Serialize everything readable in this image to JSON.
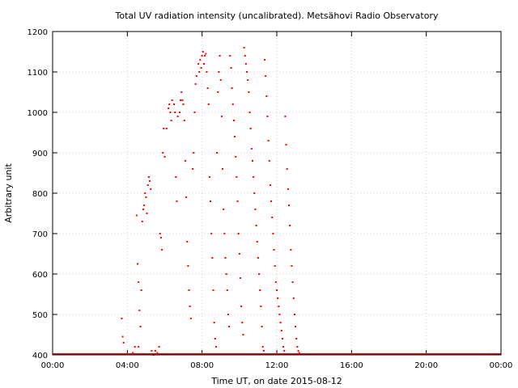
{
  "chart_data": {
    "type": "scatter",
    "title": "Total UV radiation intensity (uncalibrated). Metsähovi Radio Observatory",
    "xlabel": "Time UT, on date 2015-08-12",
    "ylabel": "Arbitrary unit",
    "x_unit": "hours UT",
    "xlim": [
      0,
      24
    ],
    "ylim": [
      400,
      1200
    ],
    "xticks": [
      {
        "value": 0,
        "label": "00:00"
      },
      {
        "value": 4,
        "label": "04:00"
      },
      {
        "value": 8,
        "label": "08:00"
      },
      {
        "value": 12,
        "label": "12:00"
      },
      {
        "value": 16,
        "label": "16:00"
      },
      {
        "value": 20,
        "label": "20:00"
      },
      {
        "value": 24,
        "label": "00:00"
      }
    ],
    "yticks": [
      400,
      500,
      600,
      700,
      800,
      900,
      1000,
      1100,
      1200
    ],
    "grid": true,
    "point_color": "#ff0000",
    "series": [
      {
        "points": [
          [
            3.7,
            490
          ],
          [
            3.75,
            445
          ],
          [
            3.8,
            430
          ],
          [
            4.3,
            405
          ],
          [
            4.4,
            420
          ],
          [
            4.5,
            745
          ],
          [
            4.55,
            625
          ],
          [
            4.6,
            580
          ],
          [
            4.6,
            420
          ],
          [
            4.65,
            510
          ],
          [
            4.7,
            470
          ],
          [
            4.75,
            560
          ],
          [
            4.8,
            730
          ],
          [
            4.85,
            760
          ],
          [
            4.9,
            770
          ],
          [
            4.95,
            800
          ],
          [
            5.0,
            790
          ],
          [
            5.05,
            750
          ],
          [
            5.1,
            820
          ],
          [
            5.15,
            840
          ],
          [
            5.2,
            830
          ],
          [
            5.25,
            810
          ],
          [
            5.3,
            410
          ],
          [
            5.4,
            400
          ],
          [
            5.5,
            410
          ],
          [
            5.6,
            405
          ],
          [
            5.7,
            420
          ],
          [
            5.75,
            700
          ],
          [
            5.8,
            690
          ],
          [
            5.85,
            660
          ],
          [
            5.9,
            900
          ],
          [
            5.95,
            960
          ],
          [
            6.0,
            890
          ],
          [
            6.1,
            960
          ],
          [
            6.2,
            1010
          ],
          [
            6.25,
            1020
          ],
          [
            6.3,
            1000
          ],
          [
            6.35,
            980
          ],
          [
            6.4,
            1030
          ],
          [
            6.5,
            1020
          ],
          [
            6.55,
            1000
          ],
          [
            6.6,
            840
          ],
          [
            6.65,
            780
          ],
          [
            6.7,
            990
          ],
          [
            6.8,
            1000
          ],
          [
            6.85,
            1030
          ],
          [
            6.9,
            1050
          ],
          [
            6.95,
            1030
          ],
          [
            7.0,
            1020
          ],
          [
            7.05,
            980
          ],
          [
            7.1,
            880
          ],
          [
            7.15,
            790
          ],
          [
            7.2,
            680
          ],
          [
            7.25,
            620
          ],
          [
            7.3,
            560
          ],
          [
            7.35,
            520
          ],
          [
            7.4,
            490
          ],
          [
            7.5,
            860
          ],
          [
            7.55,
            900
          ],
          [
            7.6,
            1000
          ],
          [
            7.65,
            1070
          ],
          [
            7.7,
            1090
          ],
          [
            7.8,
            1120
          ],
          [
            7.85,
            1100
          ],
          [
            7.9,
            1130
          ],
          [
            7.95,
            1110
          ],
          [
            8.0,
            1140
          ],
          [
            8.05,
            1150
          ],
          [
            8.1,
            1120
          ],
          [
            8.15,
            1140
          ],
          [
            8.2,
            1145
          ],
          [
            8.25,
            1100
          ],
          [
            8.3,
            1060
          ],
          [
            8.35,
            1020
          ],
          [
            8.4,
            840
          ],
          [
            8.45,
            780
          ],
          [
            8.5,
            700
          ],
          [
            8.55,
            640
          ],
          [
            8.6,
            560
          ],
          [
            8.65,
            480
          ],
          [
            8.7,
            440
          ],
          [
            8.75,
            420
          ],
          [
            8.8,
            900
          ],
          [
            8.85,
            1050
          ],
          [
            8.9,
            1100
          ],
          [
            8.95,
            1140
          ],
          [
            9.0,
            1080
          ],
          [
            9.05,
            990
          ],
          [
            9.1,
            860
          ],
          [
            9.15,
            760
          ],
          [
            9.2,
            700
          ],
          [
            9.25,
            640
          ],
          [
            9.3,
            600
          ],
          [
            9.35,
            560
          ],
          [
            9.4,
            500
          ],
          [
            9.45,
            470
          ],
          [
            9.5,
            1140
          ],
          [
            9.55,
            1110
          ],
          [
            9.6,
            1060
          ],
          [
            9.65,
            1020
          ],
          [
            9.7,
            980
          ],
          [
            9.75,
            940
          ],
          [
            9.8,
            890
          ],
          [
            9.85,
            840
          ],
          [
            9.9,
            780
          ],
          [
            9.95,
            700
          ],
          [
            10.0,
            650
          ],
          [
            10.05,
            590
          ],
          [
            10.1,
            520
          ],
          [
            10.15,
            480
          ],
          [
            10.2,
            450
          ],
          [
            10.25,
            1160
          ],
          [
            10.3,
            1140
          ],
          [
            10.35,
            1120
          ],
          [
            10.4,
            1100
          ],
          [
            10.45,
            1080
          ],
          [
            10.5,
            1050
          ],
          [
            10.55,
            1000
          ],
          [
            10.6,
            960
          ],
          [
            10.65,
            910
          ],
          [
            10.7,
            880
          ],
          [
            10.75,
            840
          ],
          [
            10.8,
            800
          ],
          [
            10.85,
            760
          ],
          [
            10.9,
            720
          ],
          [
            10.95,
            680
          ],
          [
            11.0,
            640
          ],
          [
            11.05,
            600
          ],
          [
            11.1,
            560
          ],
          [
            11.15,
            520
          ],
          [
            11.2,
            470
          ],
          [
            11.25,
            420
          ],
          [
            11.3,
            410
          ],
          [
            11.35,
            1130
          ],
          [
            11.4,
            1090
          ],
          [
            11.45,
            1040
          ],
          [
            11.5,
            990
          ],
          [
            11.55,
            930
          ],
          [
            11.6,
            880
          ],
          [
            11.65,
            820
          ],
          [
            11.7,
            780
          ],
          [
            11.75,
            740
          ],
          [
            11.8,
            700
          ],
          [
            11.85,
            660
          ],
          [
            11.9,
            620
          ],
          [
            11.95,
            580
          ],
          [
            12.0,
            560
          ],
          [
            12.05,
            540
          ],
          [
            12.1,
            520
          ],
          [
            12.15,
            500
          ],
          [
            12.2,
            480
          ],
          [
            12.25,
            460
          ],
          [
            12.3,
            440
          ],
          [
            12.35,
            420
          ],
          [
            12.4,
            410
          ],
          [
            12.45,
            990
          ],
          [
            12.5,
            920
          ],
          [
            12.55,
            860
          ],
          [
            12.6,
            810
          ],
          [
            12.65,
            770
          ],
          [
            12.7,
            720
          ],
          [
            12.75,
            660
          ],
          [
            12.8,
            620
          ],
          [
            12.85,
            580
          ],
          [
            12.9,
            540
          ],
          [
            12.95,
            500
          ],
          [
            13.0,
            470
          ],
          [
            13.05,
            440
          ],
          [
            13.1,
            420
          ],
          [
            13.15,
            410
          ],
          [
            13.2,
            405
          ],
          [
            13.3,
            402
          ],
          [
            13.5,
            401
          ]
        ]
      }
    ]
  }
}
